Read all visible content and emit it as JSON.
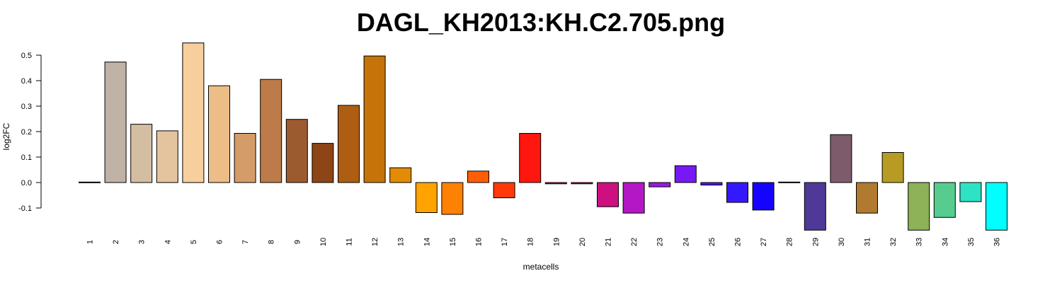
{
  "chart_data": {
    "type": "bar",
    "title": "DAGL_KH2013:KH.C2.705.png",
    "xlabel": "metacells",
    "ylabel": "log2FC",
    "yticks": [
      -0.1,
      0.0,
      0.1,
      0.2,
      0.3,
      0.4,
      0.5
    ],
    "ytick_labels": [
      "-0.1",
      "0.0",
      "0.1",
      "0.2",
      "0.3",
      "0.4",
      "0.5"
    ],
    "ylim": [
      -0.19,
      0.55
    ],
    "grid": false,
    "categories": [
      "1",
      "2",
      "3",
      "4",
      "5",
      "6",
      "7",
      "8",
      "9",
      "10",
      "11",
      "12",
      "13",
      "14",
      "15",
      "16",
      "17",
      "18",
      "19",
      "20",
      "21",
      "22",
      "23",
      "24",
      "25",
      "26",
      "27",
      "28",
      "29",
      "30",
      "31",
      "32",
      "33",
      "34",
      "35",
      "36"
    ],
    "values": [
      0.002,
      0.473,
      0.229,
      0.203,
      0.548,
      0.38,
      0.193,
      0.405,
      0.248,
      0.154,
      0.303,
      0.497,
      0.058,
      -0.118,
      -0.125,
      0.045,
      -0.06,
      0.193,
      -0.005,
      -0.005,
      -0.095,
      -0.12,
      -0.017,
      0.066,
      -0.01,
      -0.078,
      -0.108,
      0.002,
      -0.187,
      0.188,
      -0.12,
      0.118,
      -0.187,
      -0.137,
      -0.075,
      -0.187
    ],
    "colors": [
      "#c6bbab",
      "#c0b3a6",
      "#d4bea1",
      "#e3c49e",
      "#f7cf9d",
      "#ecbd86",
      "#d49c68",
      "#bc7b48",
      "#9c5b2f",
      "#8d4416",
      "#ad5e13",
      "#c57409",
      "#e38b03",
      "#ffa301",
      "#ff8103",
      "#ff5e06",
      "#ff390a",
      "#ff160e",
      "#d90f35",
      "#bb0c59",
      "#cc1080",
      "#b318c4",
      "#981ae6",
      "#7719f2",
      "#5417f0",
      "#3418fe",
      "#1504fd",
      "#0e0fe9",
      "#4e3999",
      "#7e5b6b",
      "#b07b30",
      "#b89b23",
      "#8db257",
      "#56cd8f",
      "#2ee3c5",
      "#00ffff"
    ]
  }
}
